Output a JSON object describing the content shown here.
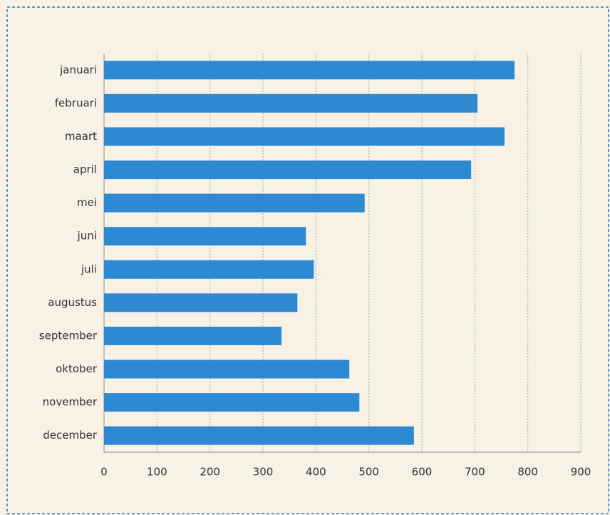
{
  "chart_data": {
    "type": "bar",
    "orientation": "horizontal",
    "categories": [
      "januari",
      "februari",
      "maart",
      "april",
      "mei",
      "juni",
      "juli",
      "augustus",
      "september",
      "oktober",
      "november",
      "december"
    ],
    "values": [
      775,
      705,
      756,
      693,
      492,
      381,
      396,
      365,
      335,
      463,
      482,
      585
    ],
    "color": "#2d8ad2",
    "xlim": [
      0,
      900
    ],
    "xticks": [
      0,
      100,
      200,
      300,
      400,
      500,
      600,
      700,
      800,
      900
    ],
    "grid": true
  }
}
